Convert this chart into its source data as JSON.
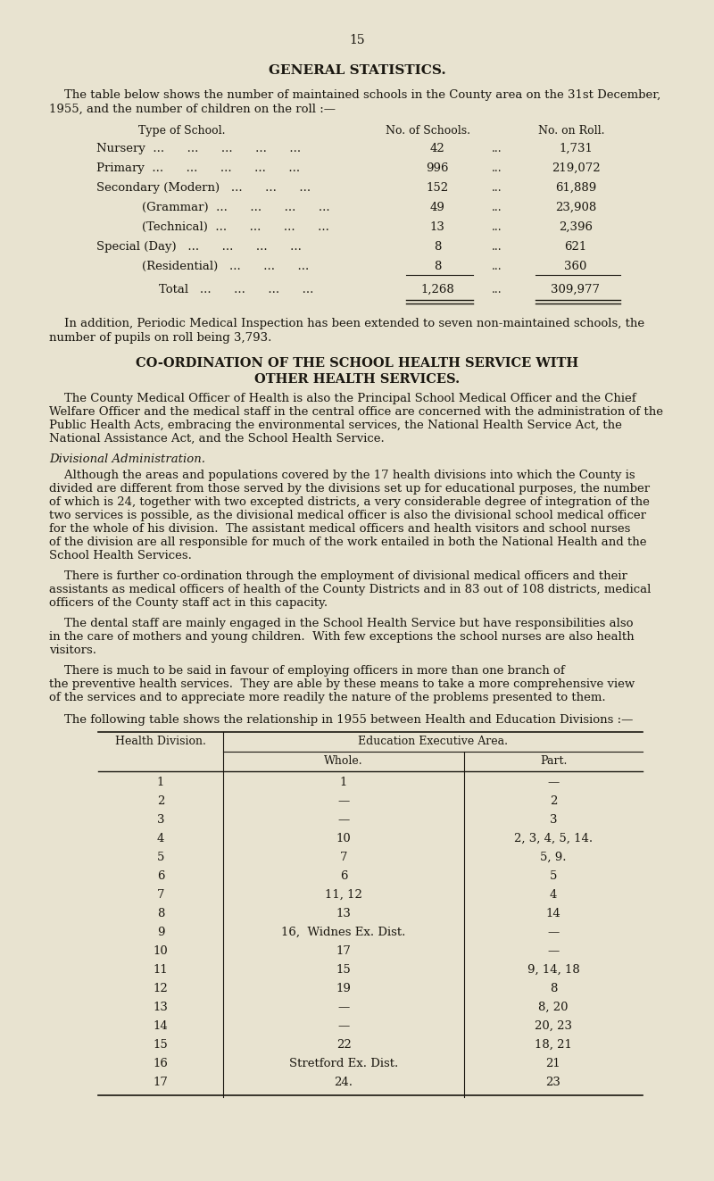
{
  "bg_color": "#e8e3d0",
  "text_color": "#1a1710",
  "page_number": "15",
  "title": "GENERAL STATISTICS.",
  "intro_line1": "    The table below shows the number of maintained schools in the County area on the 31st December,",
  "intro_line2": "1955, and the number of children on the roll :—",
  "t1_header_type": "Type of School.",
  "t1_header_num": "No. of Schools.",
  "t1_header_roll": "No. on Roll.",
  "t1_rows": [
    [
      "Nursery  ...      ...      ...      ...      ...",
      "42",
      "...",
      "1,731"
    ],
    [
      "Primary  ...      ...      ...      ...      ...",
      "996",
      "...",
      "219,072"
    ],
    [
      "Secondary (Modern)   ...      ...      ...",
      "152",
      "...",
      "61,889"
    ],
    [
      "            (Grammar)  ...      ...      ...      ...",
      "49",
      "...",
      "23,908"
    ],
    [
      "            (Technical)  ...      ...      ...      ...",
      "13",
      "...",
      "2,396"
    ],
    [
      "Special (Day)   ...      ...      ...      ...",
      "8",
      "...",
      "621"
    ],
    [
      "            (Residential)   ...      ...      ...",
      "8",
      "...",
      "360"
    ]
  ],
  "t1_total": [
    "Total   ...      ...      ...      ...",
    "1,268",
    "...",
    "309,977"
  ],
  "addition_line1": "    In addition, Periodic Medical Inspection has been extended to seven non-maintained schools, the",
  "addition_line2": "number of pupils on roll being 3,793.",
  "s2_title1": "CO-ORDINATION OF THE SCHOOL HEALTH SERVICE WITH",
  "s2_title2": "OTHER HEALTH SERVICES.",
  "p1_lines": [
    "    The County Medical Officer of Health is also the Principal School Medical Officer and the Chief",
    "Welfare Officer and the medical staff in the central office are concerned with the administration of the",
    "Public Health Acts, embracing the environmental services, the National Health Service Act, the",
    "National Assistance Act, and the School Health Service."
  ],
  "div_admin": "Divisional Administration.",
  "p2_lines": [
    "    Although the areas and populations covered by the 17 health divisions into which the County is",
    "divided are different from those served by the divisions set up for educational purposes, the number",
    "of which is 24, together with two excepted districts, a very considerable degree of integration of the",
    "two services is possible, as the divisional medical officer is also the divisional school medical officer",
    "for the whole of his division.  The assistant medical officers and health visitors and school nurses",
    "of the division are all responsible for much of the work entailed in both the National Health and the",
    "School Health Services."
  ],
  "p3_lines": [
    "    There is further co-ordination through the employment of divisional medical officers and their",
    "assistants as medical officers of health of the County Districts and in 83 out of 108 districts, medical",
    "officers of the County staff act in this capacity."
  ],
  "p4_lines": [
    "    The dental staff are mainly engaged in the School Health Service but have responsibilities also",
    "in the care of mothers and young children.  With few exceptions the school nurses are also health",
    "visitors."
  ],
  "p5_lines": [
    "    There is much to be said in favour of employing officers in more than one branch of",
    "the preventive health services.  They are able by these means to take a more comprehensive view",
    "of the services and to appreciate more readily the nature of the problems presented to them."
  ],
  "t2_intro": "    The following table shows the relationship in 1955 between Health and Education Divisions :—",
  "t2_rows": [
    [
      "1",
      "1",
      "—"
    ],
    [
      "2",
      "—",
      "2"
    ],
    [
      "3",
      "—",
      "3"
    ],
    [
      "4",
      "10",
      "2, 3, 4, 5, 14."
    ],
    [
      "5",
      "7",
      "5, 9."
    ],
    [
      "6",
      "6",
      "5"
    ],
    [
      "7",
      "11, 12",
      "4"
    ],
    [
      "8",
      "13",
      "14"
    ],
    [
      "9",
      "16,  Widnes Ex. Dist.",
      "—"
    ],
    [
      "10",
      "17",
      "—"
    ],
    [
      "11",
      "15",
      "9, 14, 18"
    ],
    [
      "12",
      "19",
      "8"
    ],
    [
      "13",
      "—",
      "8, 20"
    ],
    [
      "14",
      "—",
      "20, 23"
    ],
    [
      "15",
      "22",
      "18, 21"
    ],
    [
      "16",
      "Stretford Ex. Dist.",
      "21"
    ],
    [
      "17",
      "24.",
      "23"
    ]
  ]
}
